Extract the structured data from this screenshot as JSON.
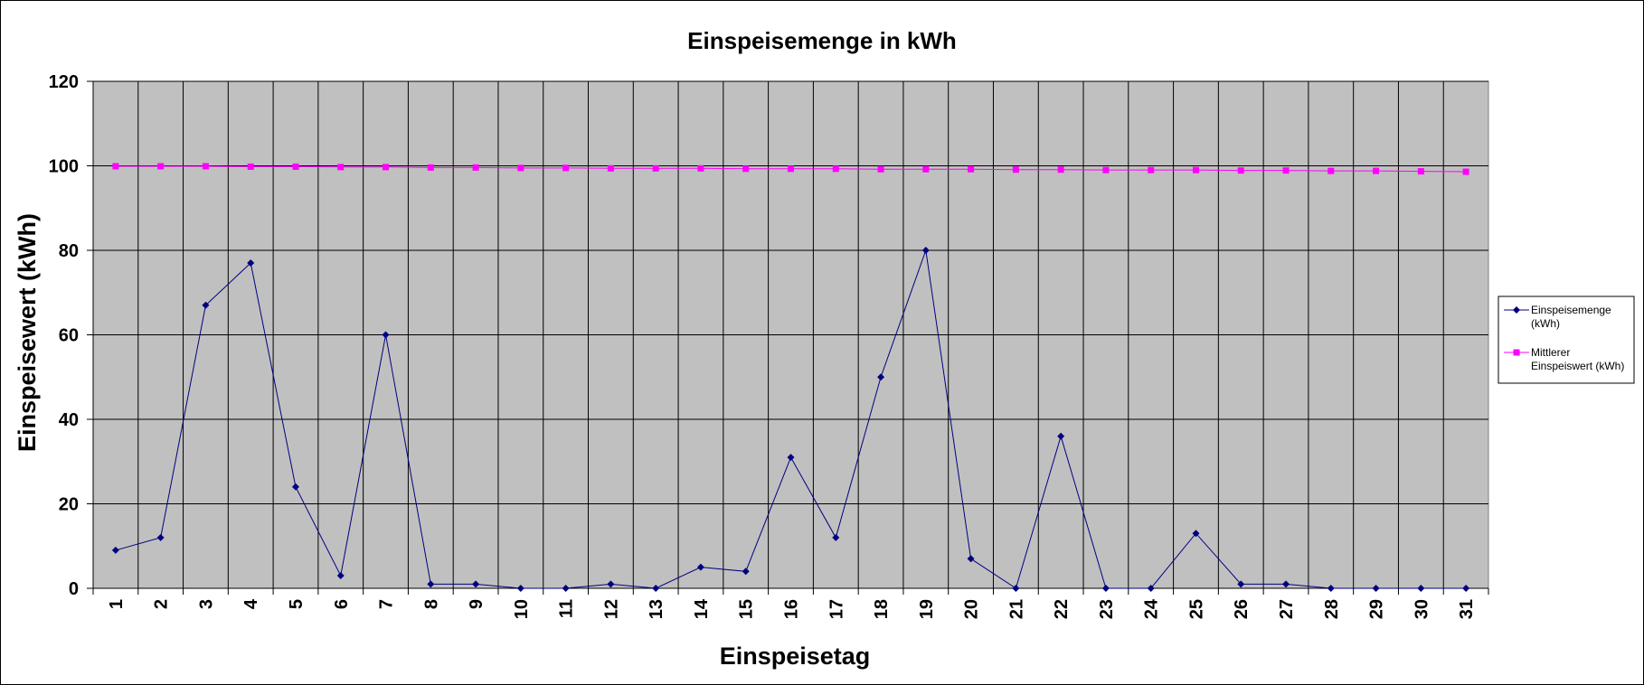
{
  "chart_data": {
    "type": "line",
    "title": "Einspeisemenge in kWh",
    "xlabel": "Einspeisetag",
    "ylabel": "Einspeisewert  (kWh)",
    "categories": [
      "1",
      "2",
      "3",
      "4",
      "5",
      "6",
      "7",
      "8",
      "9",
      "10",
      "11",
      "12",
      "13",
      "14",
      "15",
      "16",
      "17",
      "18",
      "19",
      "20",
      "21",
      "22",
      "23",
      "24",
      "25",
      "26",
      "27",
      "28",
      "29",
      "30",
      "31"
    ],
    "ylim": [
      0,
      120
    ],
    "yticks": [
      "0",
      "20",
      "40",
      "60",
      "80",
      "100",
      "120"
    ],
    "grid": true,
    "legend_position": "right",
    "series": [
      {
        "name": "Einspeisemenge (kWh)",
        "legend_lines": [
          "Einspeisemenge",
          "(kWh)"
        ],
        "color": "#000080",
        "marker": "diamond",
        "values": [
          9,
          12,
          67,
          77,
          24,
          3,
          60,
          1,
          1,
          0,
          0,
          1,
          0,
          5,
          4,
          31,
          12,
          50,
          80,
          7,
          0,
          36,
          0,
          0,
          13,
          1,
          1,
          0,
          0,
          0,
          0
        ]
      },
      {
        "name": "Mittlerer Einspeiswert (kWh)",
        "legend_lines": [
          "Mittlerer",
          "Einspeiswert (kWh)"
        ],
        "color": "#ff00ff",
        "marker": "square",
        "values": [
          99.9,
          99.9,
          99.9,
          99.8,
          99.8,
          99.7,
          99.7,
          99.6,
          99.6,
          99.5,
          99.5,
          99.4,
          99.4,
          99.4,
          99.3,
          99.3,
          99.3,
          99.2,
          99.2,
          99.2,
          99.1,
          99.1,
          99.0,
          99.0,
          99.0,
          98.9,
          98.9,
          98.8,
          98.8,
          98.7,
          98.6
        ]
      }
    ]
  }
}
